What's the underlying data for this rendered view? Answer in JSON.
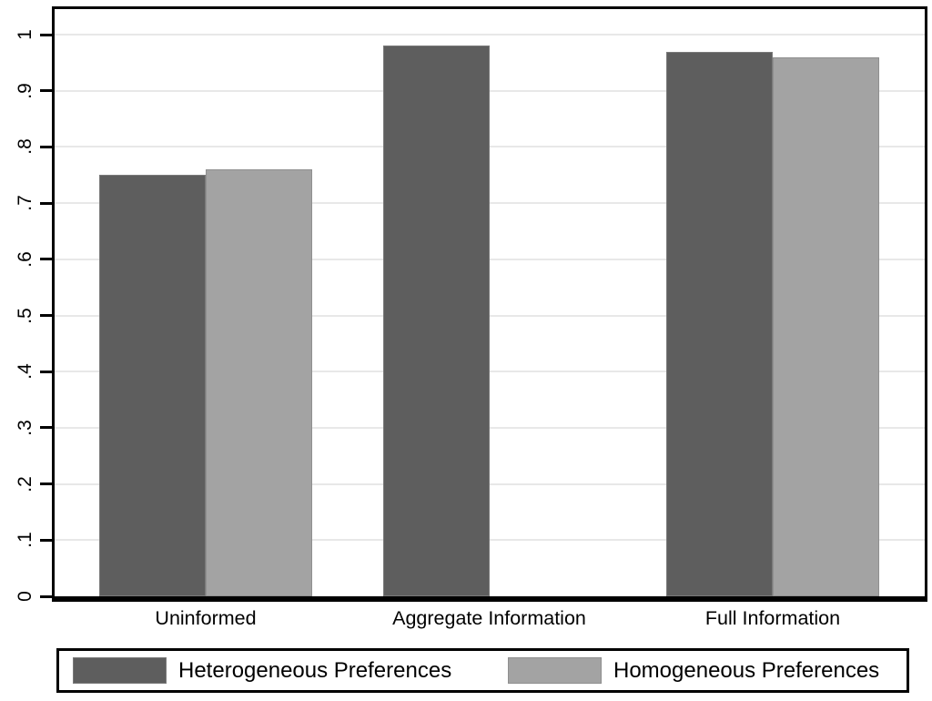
{
  "figure": {
    "background_color": "#ffffff",
    "axis_color": "#000000",
    "gridline_color": "#e8e8e8"
  },
  "chart_data": {
    "type": "bar",
    "title": "",
    "xlabel": "",
    "ylabel": "",
    "categories": [
      "Uninformed",
      "Aggregate Information",
      "Full Information"
    ],
    "series": [
      {
        "name": "Heterogeneous Preferences",
        "color": "#5e5e5e",
        "border_color": "#7a7a7a",
        "values": [
          0.75,
          0.98,
          0.97
        ]
      },
      {
        "name": "Homogeneous Preferences",
        "color": "#a3a3a3",
        "border_color": "#8f8f8f",
        "values": [
          0.76,
          null,
          0.96
        ]
      }
    ],
    "ylim": [
      0,
      1
    ],
    "ytick_values": [
      0,
      0.1,
      0.2,
      0.3,
      0.4,
      0.5,
      0.6,
      0.7,
      0.8,
      0.9,
      1
    ],
    "ytick_labels": [
      "0",
      ".1",
      ".2",
      ".3",
      ".4",
      ".5",
      ".6",
      ".7",
      ".8",
      ".9",
      "1"
    ],
    "ytick_label_rotation": -90,
    "grid": "horizontal",
    "legend_position": "bottom",
    "note": "grouped bar chart; Homogeneous Preferences bar absent for Aggregate Information"
  }
}
